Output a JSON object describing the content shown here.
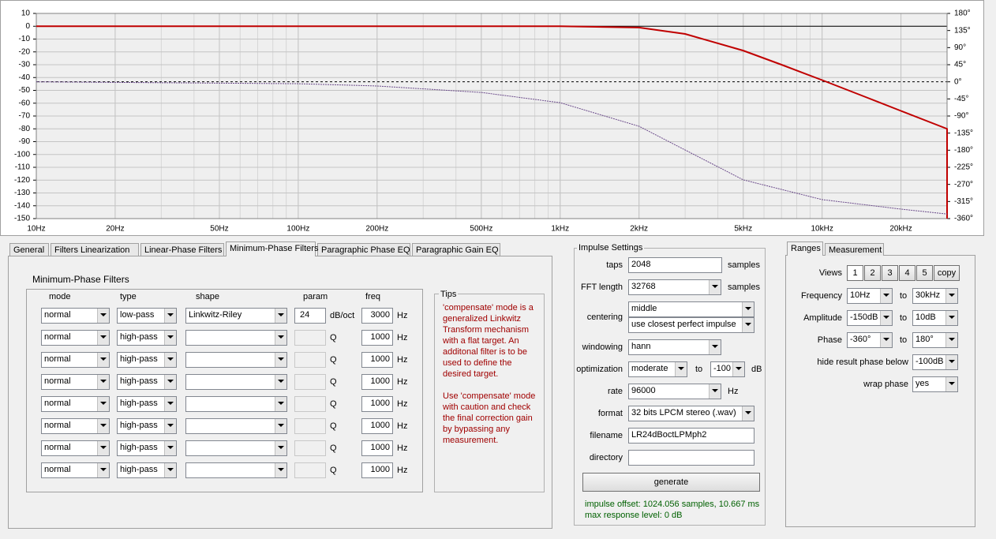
{
  "chart_data": {
    "type": "line",
    "xlog": true,
    "grid": true,
    "xlim": [
      10,
      30000
    ],
    "xticks": [
      {
        "value": 10,
        "label": "10Hz"
      },
      {
        "value": 20,
        "label": "20Hz"
      },
      {
        "value": 50,
        "label": "50Hz"
      },
      {
        "value": 100,
        "label": "100Hz"
      },
      {
        "value": 200,
        "label": "200Hz"
      },
      {
        "value": 500,
        "label": "500Hz"
      },
      {
        "value": 1000,
        "label": "1kHz"
      },
      {
        "value": 2000,
        "label": "2kHz"
      },
      {
        "value": 5000,
        "label": "5kHz"
      },
      {
        "value": 10000,
        "label": "10kHz"
      },
      {
        "value": 20000,
        "label": "20kHz"
      }
    ],
    "ylim": [
      -150,
      10
    ],
    "yticks": [
      10,
      0,
      -10,
      -20,
      -30,
      -40,
      -50,
      -60,
      -70,
      -80,
      -90,
      -100,
      -110,
      -120,
      -130,
      -140,
      -150
    ],
    "y2lim": [
      -360,
      180
    ],
    "y2ticks": [
      {
        "value": 180,
        "label": "180°"
      },
      {
        "value": 135,
        "label": "135°"
      },
      {
        "value": 90,
        "label": "90°"
      },
      {
        "value": 45,
        "label": "45°"
      },
      {
        "value": 0,
        "label": "0°"
      },
      {
        "value": -45,
        "label": "-45°"
      },
      {
        "value": -90,
        "label": "-90°"
      },
      {
        "value": -135,
        "label": "-135°"
      },
      {
        "value": -180,
        "label": "-180°"
      },
      {
        "value": -225,
        "label": "-225°"
      },
      {
        "value": -270,
        "label": "-270°"
      },
      {
        "value": -315,
        "label": "-315°"
      },
      {
        "value": -360,
        "label": "-360°"
      }
    ],
    "series": [
      {
        "color": "#c00000",
        "x": [
          10,
          100,
          1000,
          2000,
          3000,
          5000,
          7000,
          10000,
          15000,
          20000,
          30000,
          30000
        ],
        "values": [
          0,
          0,
          0,
          -1,
          -6,
          -19,
          -30,
          -42,
          -56,
          -66,
          -80,
          -150
        ]
      },
      {
        "color": "#6a4a8a",
        "axis": "y2",
        "dashed": true,
        "x": [
          10,
          100,
          200,
          500,
          1000,
          2000,
          5000,
          10000,
          20000,
          30000
        ],
        "values": [
          0,
          -5,
          -11,
          -28,
          -55,
          -117,
          -258,
          -310,
          -335,
          -348
        ]
      }
    ]
  },
  "tabs": [
    "General",
    "Filters Linearization",
    "Linear-Phase Filters",
    "Minimum-Phase Filters",
    "Paragraphic Phase EQ",
    "Paragraphic Gain EQ"
  ],
  "filters": {
    "title": "Minimum-Phase Filters",
    "columns": [
      "mode",
      "type",
      "shape",
      "param",
      "freq"
    ],
    "rows": [
      {
        "mode": "normal",
        "type": "low-pass",
        "shape": "Linkwitz-Riley",
        "param": "24",
        "param_unit": "dB/oct",
        "freq": "3000",
        "freq_unit": "Hz"
      },
      {
        "mode": "normal",
        "type": "high-pass",
        "param_unit": "Q",
        "freq": "1000",
        "freq_unit": "Hz"
      },
      {
        "mode": "normal",
        "type": "high-pass",
        "param_unit": "Q",
        "freq": "1000",
        "freq_unit": "Hz"
      },
      {
        "mode": "normal",
        "type": "high-pass",
        "param_unit": "Q",
        "freq": "1000",
        "freq_unit": "Hz"
      },
      {
        "mode": "normal",
        "type": "high-pass",
        "param_unit": "Q",
        "freq": "1000",
        "freq_unit": "Hz"
      },
      {
        "mode": "normal",
        "type": "high-pass",
        "param_unit": "Q",
        "freq": "1000",
        "freq_unit": "Hz"
      },
      {
        "mode": "normal",
        "type": "high-pass",
        "param_unit": "Q",
        "freq": "1000",
        "freq_unit": "Hz"
      },
      {
        "mode": "normal",
        "type": "high-pass",
        "param_unit": "Q",
        "freq": "1000",
        "freq_unit": "Hz"
      }
    ]
  },
  "tips": {
    "title": "Tips",
    "paragraphs": [
      [
        "'compensate' mode is a",
        "generalized Linkwitz",
        "Transform mechanism",
        "with a flat target. An",
        "additonal filter is to be",
        "used to define the",
        "desired target."
      ],
      [
        "Use 'compensate' mode",
        "with caution and check",
        "the final correction gain",
        "by bypassing any",
        "measurement."
      ]
    ]
  },
  "impulse": {
    "title": "Impulse Settings",
    "rows": [
      {
        "label": "taps",
        "value": "2048",
        "unit": "samples"
      },
      {
        "label": "FFT length",
        "value": "32768",
        "unit": "samples"
      },
      {
        "label": "centering",
        "value": "middle",
        "value2": "use closest perfect impulse"
      },
      {
        "label": "windowing",
        "value": "hann"
      },
      {
        "label": "optimization",
        "value": "moderate",
        "sep": "to",
        "value2": "-100",
        "unit": "dB"
      },
      {
        "label": "rate",
        "value": "96000",
        "unit": "Hz"
      },
      {
        "label": "format",
        "value": "32 bits LPCM stereo (.wav)"
      },
      {
        "label": "filename",
        "value": "LR24dBoctLPMph2"
      },
      {
        "label": "directory"
      }
    ],
    "button": "generate",
    "status": [
      "impulse offset: 1024.056 samples, 10.667 ms",
      "max response level: 0 dB"
    ]
  },
  "ranges": {
    "tabs": [
      "Ranges",
      "Measurement"
    ],
    "views_label": "Views",
    "views": [
      "1",
      "2",
      "3",
      "4",
      "5",
      "copy"
    ],
    "rows": [
      {
        "label": "Frequency",
        "from": "10Hz",
        "sep": "to",
        "until": "30kHz"
      },
      {
        "label": "Amplitude",
        "from": "-150dB",
        "sep": "to",
        "until": "10dB"
      },
      {
        "label": "Phase",
        "from": "-360°",
        "sep": "to",
        "until": "180°"
      },
      {
        "label": "hide result phase below",
        "value": "-100dB"
      },
      {
        "label": "wrap phase",
        "value": "yes"
      }
    ]
  }
}
